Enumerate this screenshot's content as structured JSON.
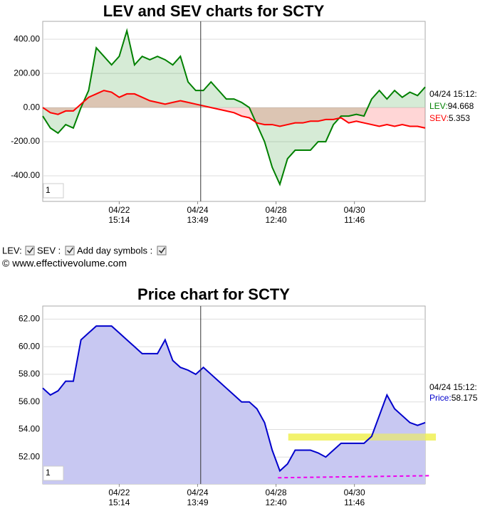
{
  "chart_data": [
    {
      "type": "line",
      "title": "LEV and SEV charts for SCTY",
      "x": [
        0,
        2,
        4,
        6,
        8,
        10,
        12,
        14,
        16,
        18,
        20,
        22,
        24,
        26,
        28,
        30,
        32,
        34,
        36,
        38,
        40,
        42,
        44,
        46,
        48,
        50,
        52,
        54,
        56,
        58,
        60,
        62,
        64,
        66,
        68,
        70,
        72,
        74,
        76,
        78,
        80,
        82,
        84,
        86,
        88,
        90,
        92,
        94,
        96,
        98,
        100
      ],
      "xlim": [
        0,
        100
      ],
      "xticks": [
        {
          "value": 20,
          "label": [
            "04/22",
            "15:14"
          ]
        },
        {
          "value": 40.5,
          "label": [
            "04/24",
            "13:49"
          ]
        },
        {
          "value": 61,
          "label": [
            "04/28",
            "12:40"
          ]
        },
        {
          "value": 81.5,
          "label": [
            "04/30",
            "11:46"
          ]
        }
      ],
      "ylim": [
        -550,
        505
      ],
      "yticks": [
        {
          "value": 400,
          "label": "400.00"
        },
        {
          "value": 200,
          "label": "200.00"
        },
        {
          "value": 0,
          "label": "0.00"
        },
        {
          "value": -200,
          "label": "-200.00"
        },
        {
          "value": -400,
          "label": "-400.00"
        }
      ],
      "baseline": 0,
      "grid": true,
      "series": [
        {
          "name": "LEV",
          "color": "#008000",
          "fill": "rgba(0,128,0,0.16)",
          "values": [
            -50,
            -120,
            -150,
            -100,
            -120,
            0,
            100,
            350,
            300,
            250,
            300,
            450,
            250,
            300,
            280,
            300,
            280,
            250,
            300,
            150,
            100,
            100,
            150,
            100,
            50,
            50,
            30,
            0,
            -100,
            -200,
            -350,
            -450,
            -300,
            -250,
            -250,
            -250,
            -200,
            -200,
            -100,
            -50,
            -50,
            -40,
            -50,
            50,
            100,
            50,
            100,
            60,
            90,
            70,
            120
          ]
        },
        {
          "name": "SEV",
          "color": "#ff0000",
          "fill": "rgba(255,0,0,0.16)",
          "values": [
            0,
            -30,
            -40,
            -20,
            -20,
            20,
            60,
            80,
            100,
            90,
            60,
            80,
            80,
            60,
            40,
            30,
            20,
            30,
            40,
            30,
            20,
            10,
            0,
            -10,
            -20,
            -30,
            -50,
            -60,
            -90,
            -100,
            -100,
            -110,
            -100,
            -90,
            -90,
            -80,
            -80,
            -70,
            -70,
            -60,
            -90,
            -80,
            -90,
            -100,
            -110,
            -100,
            -110,
            -100,
            -110,
            -110,
            -120
          ]
        }
      ],
      "cursor": {
        "x": 41.3,
        "time": "04/24 15:12:",
        "labels": [
          "LEV:",
          "SEV:"
        ],
        "values": [
          94.668,
          5.353
        ]
      },
      "zoom": "1"
    },
    {
      "type": "line",
      "title": "Price chart for SCTY",
      "x": [
        0,
        2,
        4,
        6,
        8,
        10,
        12,
        14,
        16,
        18,
        20,
        22,
        24,
        26,
        28,
        30,
        32,
        34,
        36,
        38,
        40,
        42,
        44,
        46,
        48,
        50,
        52,
        54,
        56,
        58,
        60,
        62,
        64,
        66,
        68,
        70,
        72,
        74,
        76,
        78,
        80,
        82,
        84,
        86,
        88,
        90,
        92,
        94,
        96,
        98,
        100
      ],
      "xlim": [
        0,
        100
      ],
      "xticks": [
        {
          "value": 20,
          "label": [
            "04/22",
            "15:14"
          ]
        },
        {
          "value": 40.5,
          "label": [
            "04/24",
            "13:49"
          ]
        },
        {
          "value": 61,
          "label": [
            "04/28",
            "12:40"
          ]
        },
        {
          "value": 81.5,
          "label": [
            "04/30",
            "11:46"
          ]
        }
      ],
      "ylim": [
        50.05,
        62.95
      ],
      "yticks": [
        {
          "value": 62,
          "label": "62.00"
        },
        {
          "value": 60,
          "label": "60.00"
        },
        {
          "value": 58,
          "label": "58.00"
        },
        {
          "value": 56,
          "label": "56.00"
        },
        {
          "value": 54,
          "label": "54.00"
        },
        {
          "value": 52,
          "label": "52.00"
        }
      ],
      "grid": true,
      "series": [
        {
          "name": "Price",
          "color": "#0000cc",
          "fill": "#c8c8f2",
          "values": [
            57,
            56.5,
            56.8,
            57.5,
            57.5,
            60.5,
            61,
            61.5,
            61.5,
            61.5,
            61,
            60.5,
            60,
            59.5,
            59.5,
            59.5,
            60.5,
            59,
            58.5,
            58.3,
            58,
            58.5,
            58,
            57.5,
            57,
            56.5,
            56,
            56,
            55.5,
            54.5,
            52.5,
            51,
            51.5,
            52.5,
            52.5,
            52.5,
            52.3,
            52,
            52.5,
            53,
            53,
            53,
            53,
            53.5,
            55,
            56.5,
            55.5,
            55,
            54.5,
            54.3,
            54.5
          ]
        }
      ],
      "band": {
        "x": [
          64.2,
          102.8
        ],
        "y": [
          53.2,
          53.7
        ],
        "color": "rgba(240,240,80,0.6)"
      },
      "support": {
        "x": [
          61.5,
          101.5
        ],
        "y": [
          50.5,
          50.65
        ],
        "color": "#ee00ee"
      },
      "cursor": {
        "x": 41.3,
        "time": "04/24 15:12:",
        "labels": [
          "Price:"
        ],
        "values": [
          58.175
        ]
      },
      "zoom": "1"
    }
  ],
  "controls": [
    "LEV:",
    "SEV :",
    "Add day symbols :"
  ],
  "copyright": "© www.effectivevolume.com"
}
